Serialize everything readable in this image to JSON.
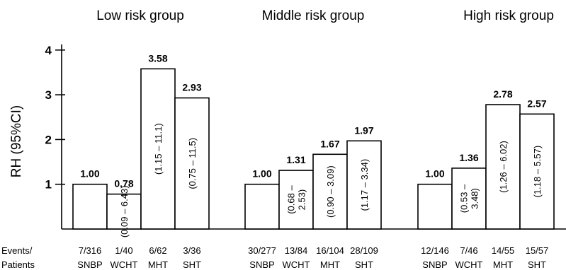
{
  "chart_data": {
    "type": "bar",
    "ylabel": "RH (95%CI)",
    "ylim": [
      0,
      4
    ],
    "yticks": [
      1,
      2,
      3,
      4
    ],
    "row_header": [
      "Events/",
      "Patients"
    ],
    "colors": {
      "bar_fill": "#ffffff",
      "bar_stroke": "#000000"
    },
    "groups": [
      {
        "title": "Low risk group",
        "categories": [
          "SNBP",
          "WCHT",
          "MHT",
          "SHT"
        ],
        "values": [
          1.0,
          0.78,
          3.58,
          2.93
        ],
        "value_labels": [
          "1.00",
          "0.78",
          "3.58",
          "2.93"
        ],
        "ci": [
          null,
          "(0.09 – 6.43)",
          "(1.15 – 11.1)",
          "(0.75 – 11.5)"
        ],
        "events": [
          "7/316",
          "1/40",
          "6/62",
          "3/36"
        ]
      },
      {
        "title": "Middle risk group",
        "categories": [
          "SNBP",
          "WCHT",
          "MHT",
          "SHT"
        ],
        "values": [
          1.0,
          1.31,
          1.67,
          1.97
        ],
        "value_labels": [
          "1.00",
          "1.31",
          "1.67",
          "1.97"
        ],
        "ci": [
          null,
          [
            "(0.68 –",
            "2.53)"
          ],
          "(0.90 – 3.09)",
          "(1.17 – 3.34)"
        ],
        "events": [
          "30/277",
          "13/84",
          "16/104",
          "28/109"
        ]
      },
      {
        "title": "High risk group",
        "categories": [
          "SNBP",
          "WCHT",
          "MHT",
          "SHT"
        ],
        "values": [
          1.0,
          1.36,
          2.78,
          2.57
        ],
        "value_labels": [
          "1.00",
          "1.36",
          "2.78",
          "2.57"
        ],
        "ci": [
          null,
          [
            "(0.53 –",
            "3.48)"
          ],
          "(1.26 – 6.02)",
          "(1.18 – 5.57)"
        ],
        "events": [
          "12/146",
          "7/46",
          "14/55",
          "15/57"
        ]
      }
    ]
  }
}
